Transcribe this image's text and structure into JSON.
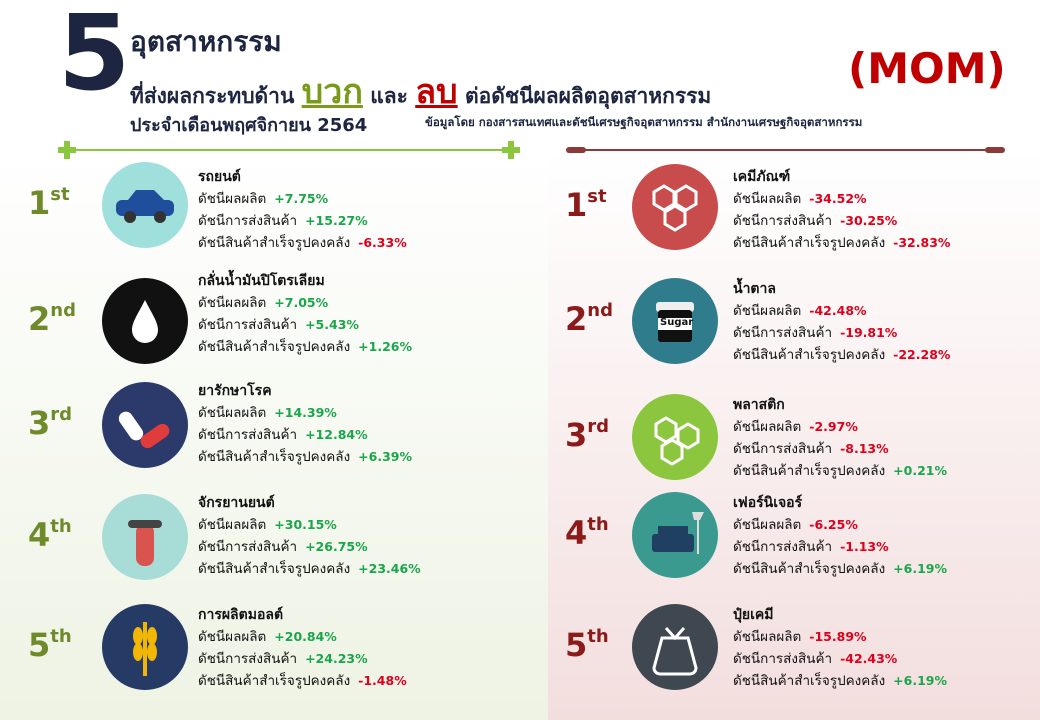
{
  "header": {
    "big_number": "5",
    "title": "อุตสาหกรรม",
    "line2_prefix": "ที่ส่งผลกระทบด้าน",
    "positive_word": "บวก",
    "and_word": "และ",
    "negative_word": "ลบ",
    "line2_suffix": "ต่อดัชนีผลผลิตอุตสาหกรรม",
    "mom": "(MOM)",
    "period": "ประจำเดือนพฤศจิกายน 2564",
    "source": "ข้อมูลโดย กองสารสนเทศและดัชนีเศรษฐกิจอุตสาหกรรม สำนักงานเศรษฐกิจอุตสาหกรรม"
  },
  "positive": [
    {
      "rank": "1",
      "suffix": "st",
      "name": "รถยนต์",
      "metrics": [
        {
          "label": "ดัชนีผลผลิต",
          "value": "+7.75%"
        },
        {
          "label": "ดัชนีการส่งสินค้า",
          "value": "+15.27%"
        },
        {
          "label": "ดัชนีสินค้าสำเร็จรูปคงคลัง",
          "value": "-6.33%"
        }
      ]
    },
    {
      "rank": "2",
      "suffix": "nd",
      "name": "กลั่นน้ำมันปิโตรเลียม",
      "metrics": [
        {
          "label": "ดัชนีผลผลิต",
          "value": "+7.05%"
        },
        {
          "label": "ดัชนีการส่งสินค้า",
          "value": "+5.43%"
        },
        {
          "label": "ดัชนีสินค้าสำเร็จรูปคงคลัง",
          "value": "+1.26%"
        }
      ]
    },
    {
      "rank": "3",
      "suffix": "rd",
      "name": "ยารักษาโรค",
      "metrics": [
        {
          "label": "ดัชนีผลผลิต",
          "value": "+14.39%"
        },
        {
          "label": "ดัชนีการส่งสินค้า",
          "value": "+12.84%"
        },
        {
          "label": "ดัชนีสินค้าสำเร็จรูปคงคลัง",
          "value": "+6.39%"
        }
      ]
    },
    {
      "rank": "4",
      "suffix": "th",
      "name": "จักรยานยนต์",
      "metrics": [
        {
          "label": "ดัชนีผลผลิต",
          "value": "+30.15%"
        },
        {
          "label": "ดัชนีการส่งสินค้า",
          "value": "+26.75%"
        },
        {
          "label": "ดัชนีสินค้าสำเร็จรูปคงคลัง",
          "value": "+23.46%"
        }
      ]
    },
    {
      "rank": "5",
      "suffix": "th",
      "name": "การผลิตมอลต์",
      "metrics": [
        {
          "label": "ดัชนีผลผลิต",
          "value": "+20.84%"
        },
        {
          "label": "ดัชนีการส่งสินค้า",
          "value": "+24.23%"
        },
        {
          "label": "ดัชนีสินค้าสำเร็จรูปคงคลัง",
          "value": "-1.48%"
        }
      ]
    }
  ],
  "negative": [
    {
      "rank": "1",
      "suffix": "st",
      "name": "เคมีภัณฑ์",
      "metrics": [
        {
          "label": "ดัชนีผลผลิต",
          "value": "-34.52%"
        },
        {
          "label": "ดัชนีการส่งสินค้า",
          "value": "-30.25%"
        },
        {
          "label": "ดัชนีสินค้าสำเร็จรูปคงคลัง",
          "value": "-32.83%"
        }
      ]
    },
    {
      "rank": "2",
      "suffix": "nd",
      "name": "น้ำตาล",
      "icon_text": "Sugar",
      "metrics": [
        {
          "label": "ดัชนีผลผลิต",
          "value": "-42.48%"
        },
        {
          "label": "ดัชนีการส่งสินค้า",
          "value": "-19.81%"
        },
        {
          "label": "ดัชนีสินค้าสำเร็จรูปคงคลัง",
          "value": "-22.28%"
        }
      ]
    },
    {
      "rank": "3",
      "suffix": "rd",
      "name": "พลาสติก",
      "metrics": [
        {
          "label": "ดัชนีผลผลิต",
          "value": "-2.97%"
        },
        {
          "label": "ดัชนีการส่งสินค้า",
          "value": "-8.13%"
        },
        {
          "label": "ดัชนีสินค้าสำเร็จรูปคงคลัง",
          "value": "+0.21%"
        }
      ]
    },
    {
      "rank": "4",
      "suffix": "th",
      "name": "เฟอร์นิเจอร์",
      "metrics": [
        {
          "label": "ดัชนีผลผลิต",
          "value": "-6.25%"
        },
        {
          "label": "ดัชนีการส่งสินค้า",
          "value": "-1.13%"
        },
        {
          "label": "ดัชนีสินค้าสำเร็จรูปคงคลัง",
          "value": "+6.19%"
        }
      ]
    },
    {
      "rank": "5",
      "suffix": "th",
      "name": "ปุ๋ยเคมี",
      "metrics": [
        {
          "label": "ดัชนีผลผลิต",
          "value": "-15.89%"
        },
        {
          "label": "ดัชนีการส่งสินค้า",
          "value": "-42.43%"
        },
        {
          "label": "ดัชนีสินค้าสำเร็จรูปคงคลัง",
          "value": "+6.19%"
        }
      ]
    }
  ]
}
